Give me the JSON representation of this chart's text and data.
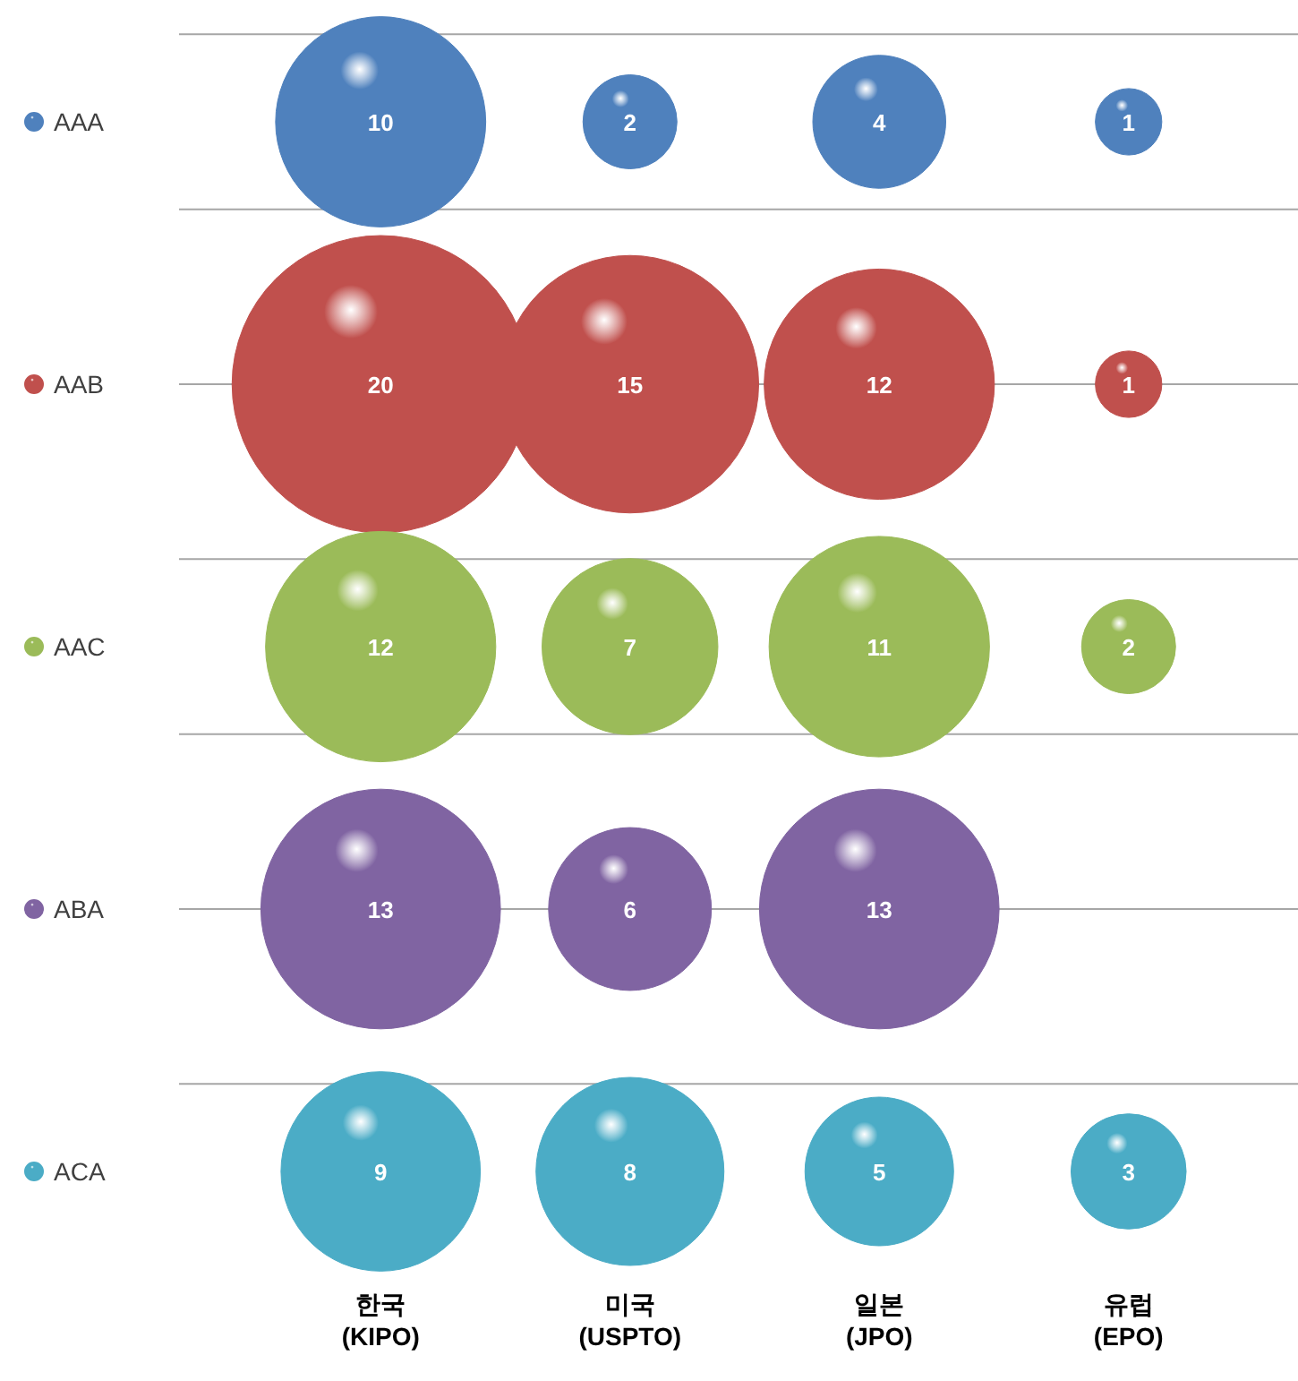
{
  "chart_data": {
    "type": "heatmap",
    "categories": [
      "한국\n(KIPO)",
      "미국\n(USPTO)",
      "일본\n(JPO)",
      "유럽\n(EPO)"
    ],
    "y_categories": [
      "AAA",
      "AAB",
      "AAC",
      "ABA",
      "ACA"
    ],
    "colors": [
      "#4f81bd",
      "#c0504d",
      "#9bbb59",
      "#8064a2",
      "#4bacc6"
    ],
    "grid": "y",
    "data_labels": true,
    "cells": [
      [
        10,
        2,
        4,
        1
      ],
      [
        20,
        15,
        12,
        1
      ],
      [
        12,
        7,
        11,
        2
      ],
      [
        13,
        6,
        13,
        null
      ],
      [
        9,
        8,
        5,
        3
      ]
    ]
  }
}
